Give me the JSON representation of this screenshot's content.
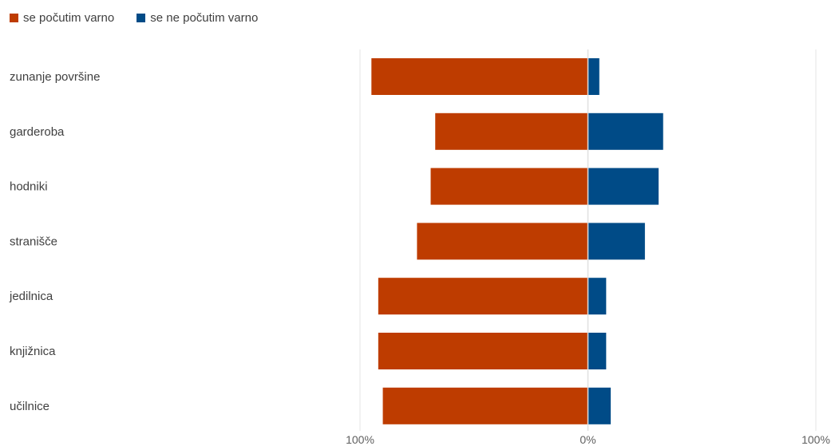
{
  "chart_data": {
    "type": "bar",
    "orientation": "horizontal-diverging",
    "categories": [
      "zunanje površine",
      "garderoba",
      "hodniki",
      "stranišče",
      "jedilnica",
      "knjižnica",
      "učilnice"
    ],
    "series": [
      {
        "name": "se počutim varno",
        "values": [
          95,
          67,
          69,
          75,
          92,
          92,
          90
        ],
        "direction": "left",
        "color": "#BE3C00"
      },
      {
        "name": "se ne počutim varno",
        "values": [
          5,
          33,
          31,
          25,
          8,
          8,
          10
        ],
        "direction": "right",
        "color": "#004B87"
      }
    ],
    "xlim": [
      -100,
      100
    ],
    "tick_labels": [
      "100%",
      "0%",
      "100%"
    ],
    "grid": true,
    "legend": "top-left",
    "title": "",
    "xlabel": "",
    "ylabel": ""
  }
}
